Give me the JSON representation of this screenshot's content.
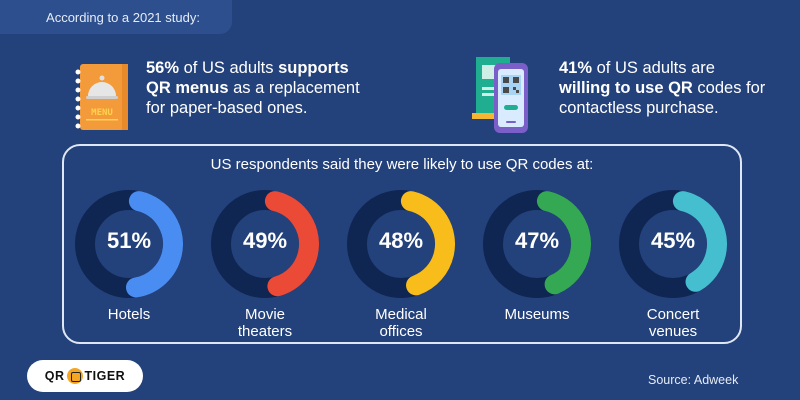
{
  "header": {
    "tag": "According to a 2021 study:"
  },
  "stats": [
    {
      "highlight": "56%",
      "text1": " of US adults ",
      "bold": "supports QR menus",
      "text2": " as a replacement for paper-based ones.",
      "icon": "menu-book-icon"
    },
    {
      "highlight": "41%",
      "text1": " of US adults are ",
      "bold": "willing to use QR",
      "text2": " codes for contactless purchase.",
      "icon": "qr-phone-icon"
    }
  ],
  "panel": {
    "title": "US respondents said they were likely to use QR codes at:"
  },
  "chart_data": {
    "type": "pie",
    "subtype": "donut",
    "title": "US respondents said they were likely to use QR codes at:",
    "categories": [
      "Hotels",
      "Movie theaters",
      "Medical offices",
      "Museums",
      "Concert venues"
    ],
    "values": [
      51,
      49,
      48,
      47,
      45
    ],
    "unit": "%",
    "colors": [
      "#4a8df2",
      "#ea4a36",
      "#f9bd1b",
      "#34a853",
      "#45bfcf"
    ],
    "track_color": "#0f2552",
    "value_labels": [
      "51%",
      "49%",
      "48%",
      "47%",
      "45%"
    ],
    "label_lines": [
      [
        "Hotels"
      ],
      [
        "Movie",
        "theaters"
      ],
      [
        "Medical",
        "offices"
      ],
      [
        "Museums"
      ],
      [
        "Concert",
        "venues"
      ]
    ]
  },
  "footer": {
    "logo": "QR TIGER",
    "logo_left": "QR",
    "logo_right": "TIGER",
    "source": "Source: Adweek"
  },
  "colors": {
    "background": "#23417a",
    "tag_bg": "#2d4f8d",
    "panel_border": "#dfe7f3"
  }
}
